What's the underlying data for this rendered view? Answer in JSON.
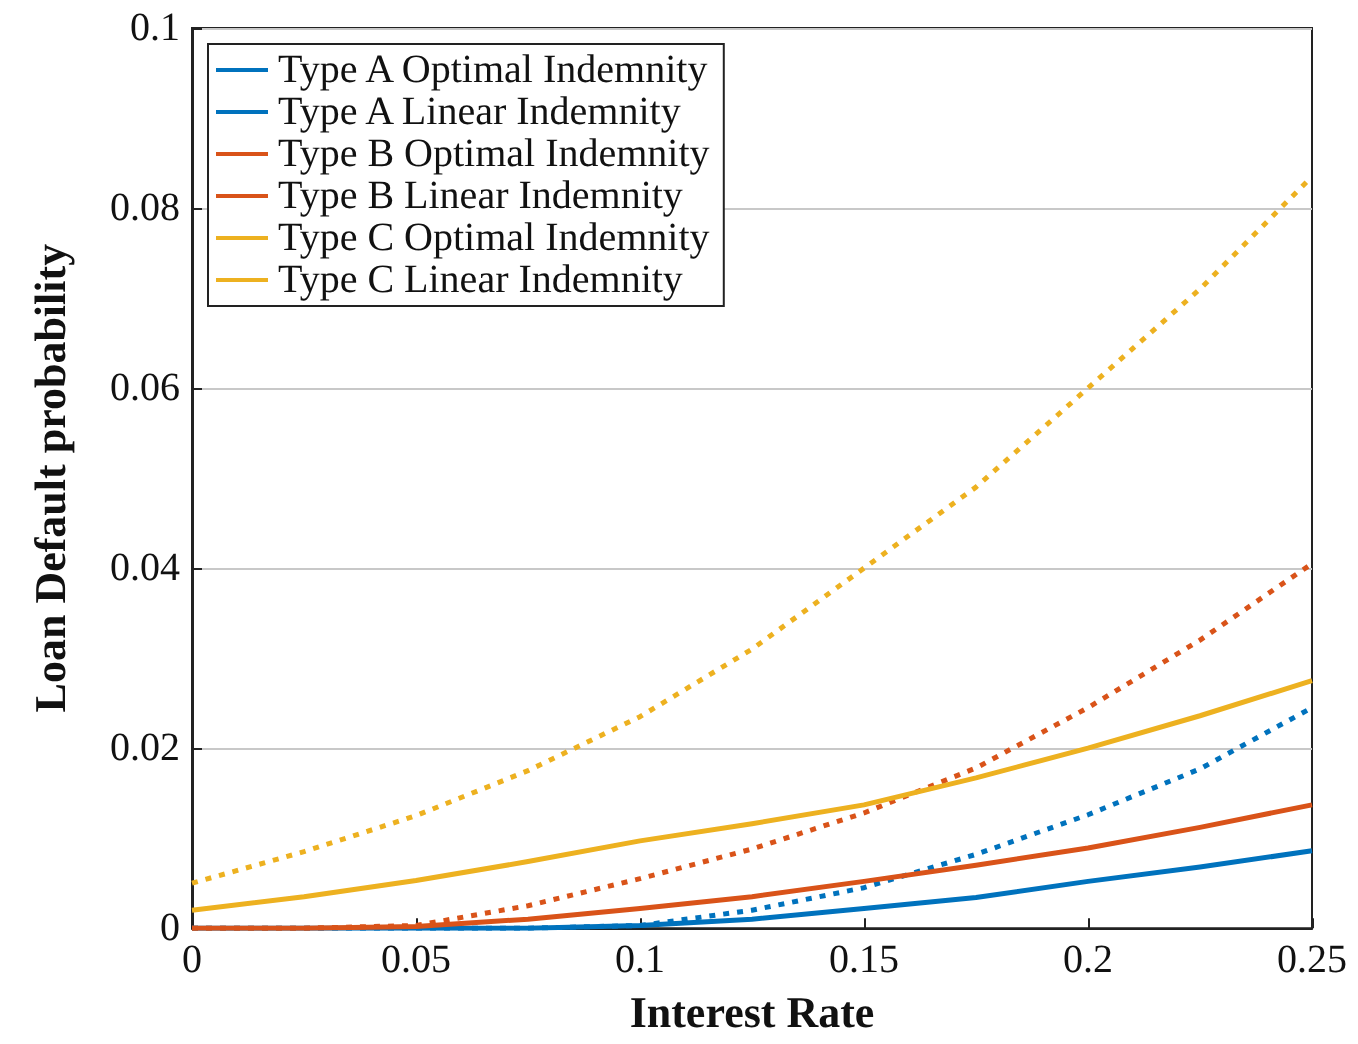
{
  "chart_data": {
    "type": "line",
    "xlabel": "Interest Rate",
    "ylabel": "Loan Default probability",
    "x": [
      0,
      0.025,
      0.05,
      0.075,
      0.1,
      0.125,
      0.15,
      0.175,
      0.2,
      0.225,
      0.25
    ],
    "series": [
      {
        "name": "Type A Optimal Indemnity",
        "color": "#0072bd",
        "line_style": "solid",
        "values": [
          0,
          0,
          0,
          0,
          0.0003,
          0.001,
          0.0022,
          0.0034,
          0.0052,
          0.0068,
          0.0086
        ]
      },
      {
        "name": "Type A Linear Indemnity",
        "color": "#0072bd",
        "line_style": "dotted",
        "values": [
          0,
          0,
          0,
          0,
          0.0003,
          0.002,
          0.0045,
          0.0082,
          0.0126,
          0.0177,
          0.0245
        ]
      },
      {
        "name": "Type B Optimal Indemnity",
        "color": "#d95319",
        "line_style": "solid",
        "values": [
          0,
          0,
          0.0002,
          0.001,
          0.0022,
          0.0035,
          0.0052,
          0.007,
          0.0089,
          0.0112,
          0.0137
        ]
      },
      {
        "name": "Type B Linear Indemnity",
        "color": "#d95319",
        "line_style": "dotted",
        "values": [
          0,
          0,
          0.0003,
          0.0025,
          0.0055,
          0.0088,
          0.0128,
          0.0178,
          0.0245,
          0.032,
          0.0405
        ]
      },
      {
        "name": "Type C Optimal Indemnity",
        "color": "#edb120",
        "line_style": "solid",
        "values": [
          0.002,
          0.0035,
          0.0053,
          0.0074,
          0.0097,
          0.0116,
          0.0137,
          0.0167,
          0.02,
          0.0236,
          0.0275
        ]
      },
      {
        "name": "Type C Linear Indemnity",
        "color": "#edb120",
        "line_style": "dotted",
        "values": [
          0.005,
          0.0085,
          0.0125,
          0.0175,
          0.0235,
          0.031,
          0.04,
          0.049,
          0.06,
          0.071,
          0.0835
        ]
      }
    ],
    "xlim": [
      0,
      0.25
    ],
    "xticks": [
      0,
      0.05,
      0.1,
      0.15,
      0.2,
      0.25
    ],
    "ylim": [
      0,
      0.1
    ],
    "yticks": [
      0,
      0.02,
      0.04,
      0.06,
      0.08,
      0.1
    ],
    "grid": "y",
    "legend": "top left",
    "marker": "none"
  }
}
